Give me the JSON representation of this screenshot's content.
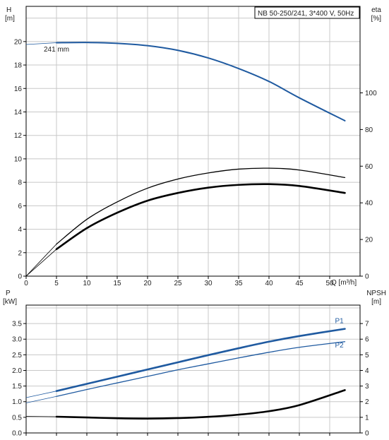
{
  "chart_data": [
    {
      "type": "line",
      "title": "NB 50-250/241, 3*400 V, 50Hz",
      "xlabel": "Q [m³/h]",
      "x_ticks": [
        "0",
        "5",
        "10",
        "15",
        "20",
        "25",
        "30",
        "35",
        "40",
        "45",
        "50"
      ],
      "xlim": [
        0,
        55
      ],
      "ylabel_left": [
        "H",
        "[m]"
      ],
      "ylabel_right": [
        "eta",
        "[%]"
      ],
      "yleft_ticks": [
        "0",
        "2",
        "4",
        "6",
        "8",
        "10",
        "12",
        "14",
        "16",
        "18",
        "20"
      ],
      "yleft_lim": [
        0,
        23
      ],
      "yright_ticks": [
        "0",
        "20",
        "40",
        "60",
        "80",
        "100"
      ],
      "yright_lim": [
        0,
        147.2
      ],
      "grid": true,
      "annotation": "241 mm",
      "series": [
        {
          "name": "241 mm",
          "axis": "left",
          "color": "#1f5aa0",
          "x": [
            0,
            5,
            10,
            15,
            20,
            25,
            30,
            35,
            40,
            45,
            52.5
          ],
          "y": [
            19.75,
            19.9,
            19.92,
            19.85,
            19.65,
            19.25,
            18.6,
            17.7,
            16.6,
            15.2,
            13.25
          ],
          "solid_from_x": 5
        },
        {
          "name": "",
          "axis": "right",
          "color": "#000000",
          "width": 1.3,
          "x": [
            0,
            5,
            10,
            15,
            20,
            25,
            30,
            35,
            40,
            45,
            52.5
          ],
          "y": [
            0,
            17.5,
            31,
            40.5,
            48,
            53,
            56.3,
            58.4,
            58.9,
            57.9,
            53.8
          ],
          "solid_from_x": 5
        },
        {
          "name": "",
          "axis": "right",
          "color": "#000000",
          "width": 2.6,
          "x": [
            0,
            5,
            10,
            15,
            20,
            25,
            30,
            35,
            40,
            45,
            52.5
          ],
          "y": [
            0,
            14.7,
            26.2,
            34.6,
            41.2,
            45.4,
            48.3,
            49.8,
            50.2,
            49.2,
            45.4
          ],
          "solid_from_x": 5
        }
      ]
    },
    {
      "type": "line",
      "ylabel_left": [
        "P",
        "[kW]"
      ],
      "ylabel_right": [
        "NPSH",
        "[m]"
      ],
      "yleft_ticks": [
        "0.0",
        "0.5",
        "1.0",
        "1.5",
        "2.0",
        "2.5",
        "3.0",
        "3.5"
      ],
      "yleft_lim": [
        0,
        4.09
      ],
      "yright_ticks": [
        "0",
        "1",
        "2",
        "3",
        "4",
        "5",
        "6",
        "7"
      ],
      "yright_lim": [
        0,
        8.18
      ],
      "grid": true,
      "series": [
        {
          "name": "P1",
          "axis": "left",
          "color": "#1f5aa0",
          "width": 2.6,
          "x": [
            0,
            5,
            10,
            15,
            20,
            25,
            30,
            35,
            40,
            45,
            52.5
          ],
          "y": [
            1.13,
            1.34,
            1.57,
            1.8,
            2.03,
            2.26,
            2.49,
            2.71,
            2.92,
            3.1,
            3.33
          ],
          "solid_from_x": 5
        },
        {
          "name": "P2",
          "axis": "left",
          "color": "#1f5aa0",
          "width": 1.3,
          "x": [
            0,
            5,
            10,
            15,
            20,
            25,
            30,
            35,
            40,
            45,
            52.5
          ],
          "y": [
            0.96,
            1.17,
            1.39,
            1.6,
            1.81,
            2.02,
            2.21,
            2.4,
            2.58,
            2.74,
            2.92
          ],
          "solid_from_x": 5
        },
        {
          "name": "",
          "axis": "right",
          "color": "#000000",
          "width": 2.6,
          "x": [
            0,
            5,
            10,
            15,
            20,
            25,
            30,
            35,
            40,
            45,
            52.5
          ],
          "y": [
            1.06,
            1.04,
            0.99,
            0.94,
            0.92,
            0.95,
            1.03,
            1.17,
            1.39,
            1.78,
            2.74
          ],
          "solid_from_x": 5
        }
      ]
    }
  ],
  "colors": {
    "grid": "#c8c8c8",
    "frame": "#000000",
    "curve_blue": "#1f5aa0",
    "text": "#222222"
  }
}
